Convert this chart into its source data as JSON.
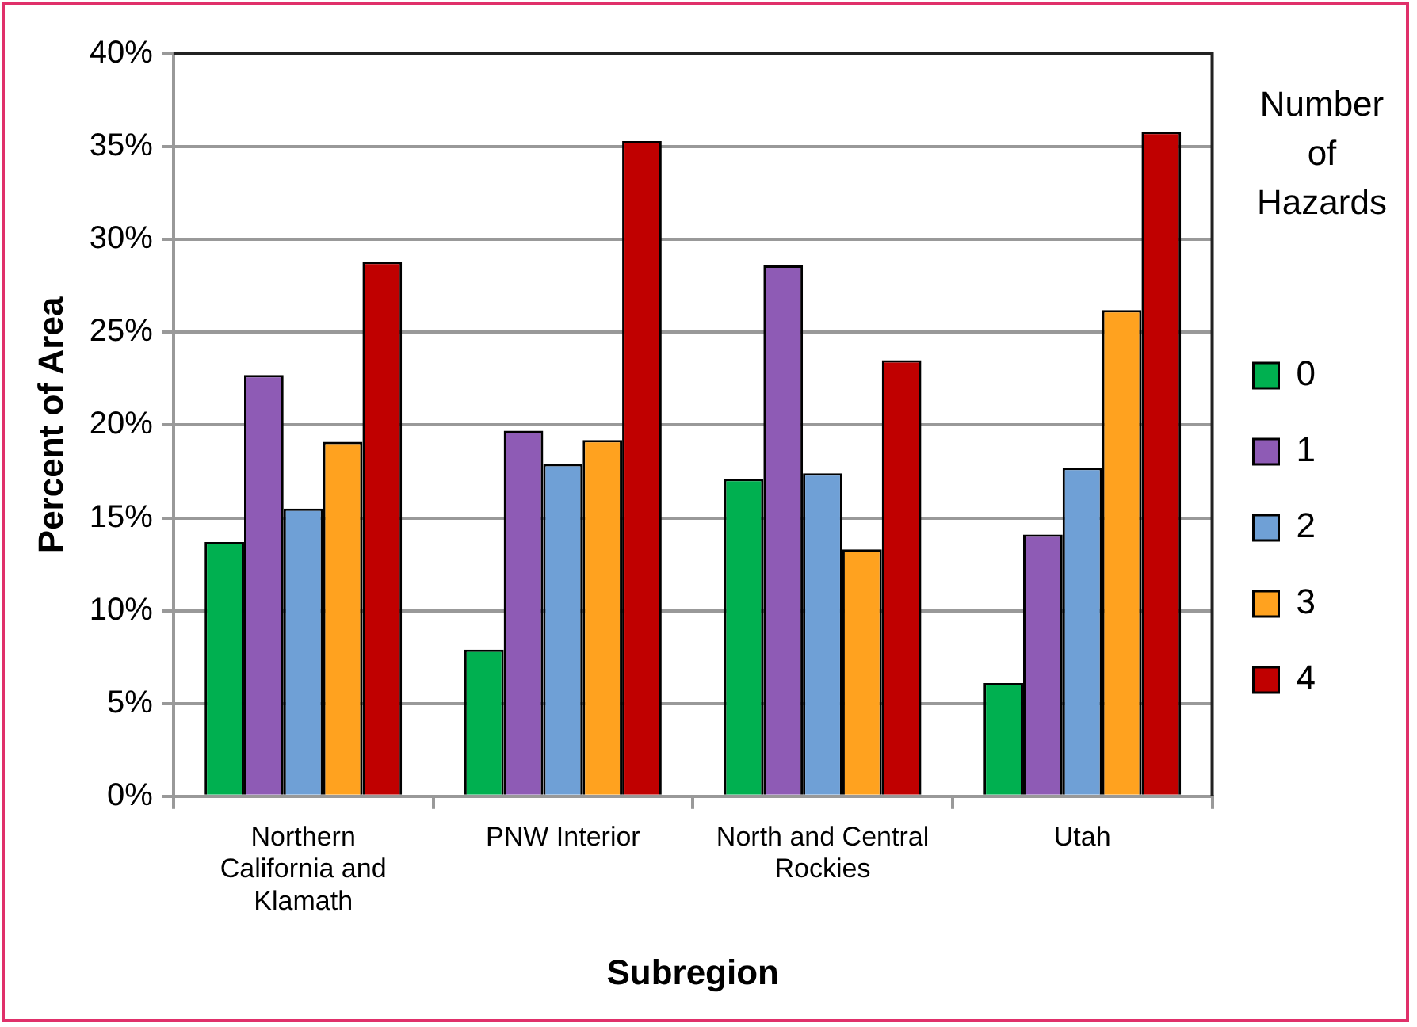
{
  "chart_data": {
    "type": "bar",
    "xlabel": "Subregion",
    "ylabel": "Percent of Area",
    "legend_title": "Number of Hazards",
    "categories": [
      "Northern California and Klamath",
      "PNW Interior",
      "North and Central Rockies",
      "Utah"
    ],
    "series": [
      {
        "name": "0",
        "color": "#00b050",
        "values": [
          13.7,
          7.9,
          17.1,
          6.1
        ]
      },
      {
        "name": "1",
        "color": "#8e5bb5",
        "values": [
          22.7,
          19.7,
          28.6,
          14.1
        ]
      },
      {
        "name": "2",
        "color": "#6fa0d6",
        "values": [
          15.5,
          17.9,
          17.4,
          17.7
        ]
      },
      {
        "name": "3",
        "color": "#ffa21f",
        "values": [
          19.1,
          19.2,
          13.3,
          26.2
        ]
      },
      {
        "name": "4",
        "color": "#c00000",
        "values": [
          28.8,
          35.3,
          23.5,
          35.8
        ]
      }
    ],
    "ylim": [
      0,
      40
    ],
    "yticks": [
      {
        "value": 0,
        "label": "0%"
      },
      {
        "value": 5,
        "label": "5%"
      },
      {
        "value": 10,
        "label": "10%"
      },
      {
        "value": 15,
        "label": "15%"
      },
      {
        "value": 20,
        "label": "20%"
      },
      {
        "value": 25,
        "label": "25%"
      },
      {
        "value": 30,
        "label": "30%"
      },
      {
        "value": 35,
        "label": "35%"
      },
      {
        "value": 40,
        "label": "40%"
      }
    ],
    "grid": "y",
    "legend": "right"
  }
}
